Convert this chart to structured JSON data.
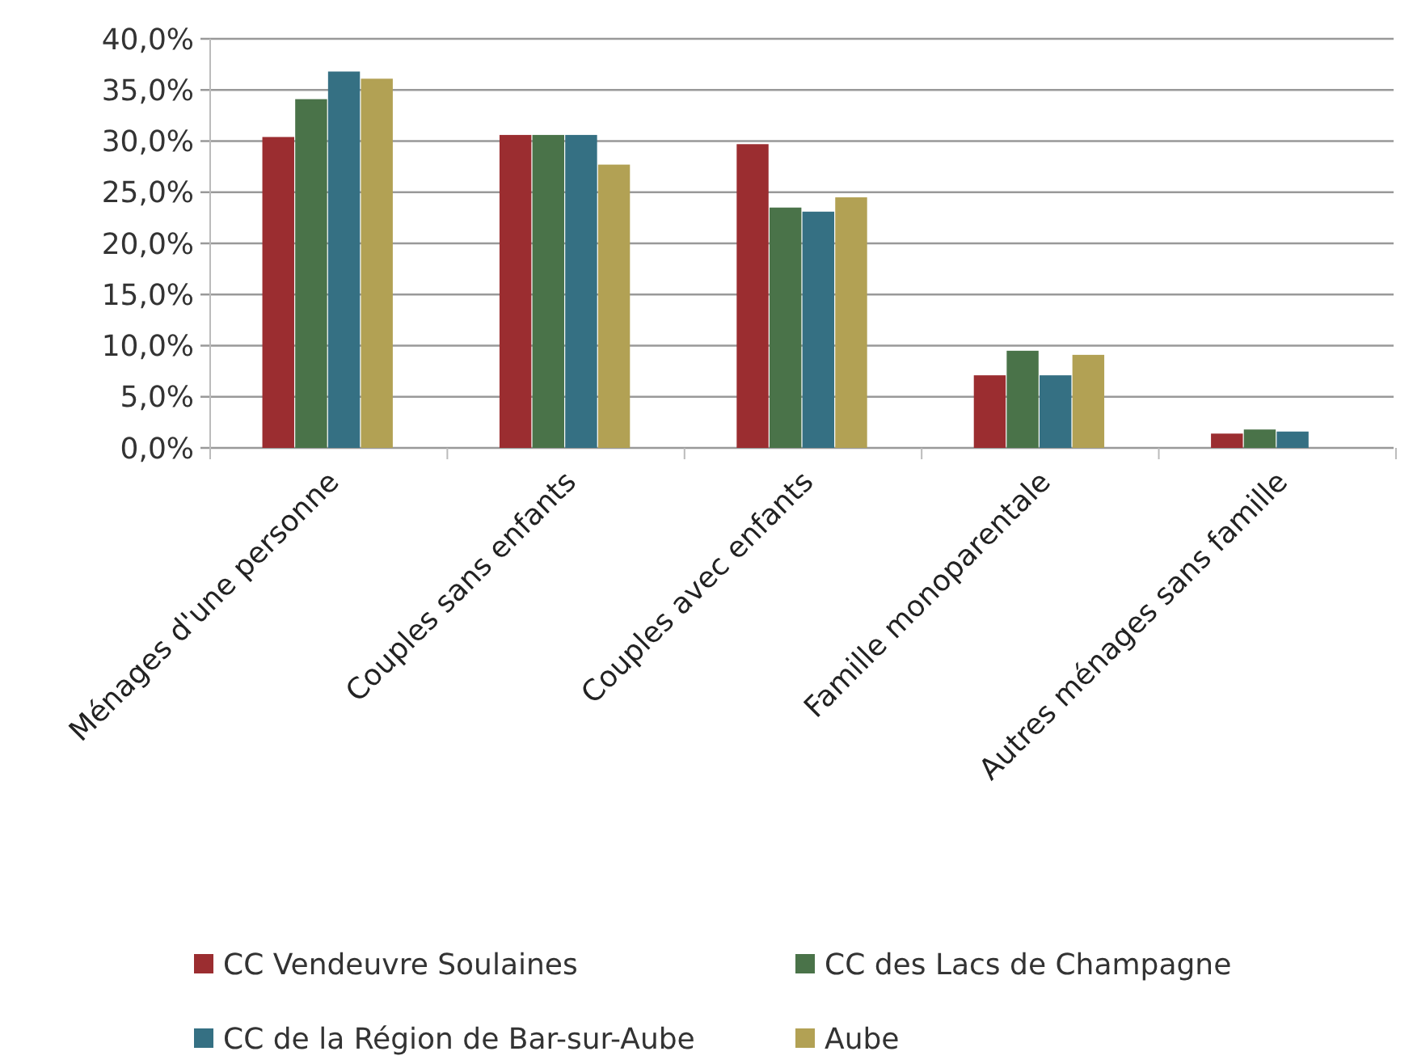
{
  "chart_data": {
    "type": "bar",
    "categories": [
      "Ménages d'une personne",
      "Couples sans enfants",
      "Couples avec enfants",
      "Famille monoparentale",
      "Autres ménages sans famille"
    ],
    "series": [
      {
        "name": "CC Vendeuvre Soulaines",
        "color": "#9b2d30",
        "values": [
          30.4,
          30.6,
          29.7,
          7.1,
          1.4
        ]
      },
      {
        "name": "CC des Lacs de Champagne",
        "color": "#4a7349",
        "values": [
          34.1,
          30.6,
          23.5,
          9.5,
          1.8
        ]
      },
      {
        "name": "CC de la Région de Bar-sur-Aube",
        "color": "#357083",
        "values": [
          36.8,
          30.6,
          23.1,
          7.1,
          1.6
        ]
      },
      {
        "name": "Aube",
        "color": "#b2a154",
        "values": [
          36.1,
          27.7,
          24.5,
          9.1,
          null
        ]
      }
    ],
    "ylim": [
      0,
      40
    ],
    "yticks": [
      {
        "value": 0,
        "label": "0,0%"
      },
      {
        "value": 5,
        "label": "5,0%"
      },
      {
        "value": 10,
        "label": "10,0%"
      },
      {
        "value": 15,
        "label": "15,0%"
      },
      {
        "value": 20,
        "label": "20,0%"
      },
      {
        "value": 25,
        "label": "25,0%"
      },
      {
        "value": 30,
        "label": "30,0%"
      },
      {
        "value": 35,
        "label": "35,0%"
      },
      {
        "value": 40,
        "label": "40,0%"
      }
    ],
    "grid": "y",
    "legend": "bottom"
  }
}
